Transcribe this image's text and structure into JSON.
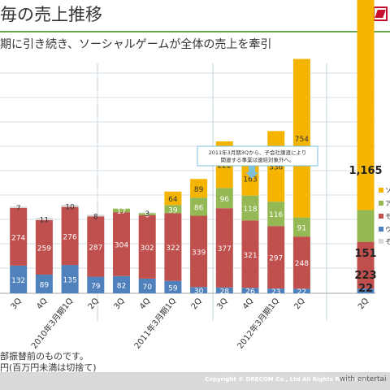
{
  "header": {
    "title": "毎の売上推移",
    "subtitle": "期に引き続き、ソーシャルゲームが全体の売上を牽引"
  },
  "footnotes": [
    "部振替前のものです。",
    "円(百万円未満は切捨て)"
  ],
  "footer": {
    "copyright": "Copyright © DRECOM Co., Ltd All Rights Reserved.",
    "tagline": "with entertai"
  },
  "colors": {
    "social": "#f5b400",
    "ad": "#94b954",
    "media": "#c0504d",
    "web": "#4f81bd",
    "other": "#d9d9d9",
    "grid": "#c5d8e0",
    "axis": "#a6a6a6"
  },
  "chart_data": {
    "type": "bar",
    "stacked": true,
    "x_labels": [
      "2Q",
      "3Q",
      "4Q",
      "2010年3月期1Q",
      "2Q",
      "3Q",
      "4Q",
      "2011年3月期1Q",
      "2Q",
      "3Q",
      "4Q",
      "2012年3月期1Q",
      "2Q"
    ],
    "series": [
      {
        "key": "web",
        "name": "ウ",
        "values": [
          null,
          132,
          89,
          135,
          79,
          82,
          70,
          59,
          30,
          28,
          26,
          23,
          22
        ]
      },
      {
        "key": "media",
        "name": "モ",
        "values": [
          null,
          274,
          259,
          276,
          287,
          304,
          302,
          322,
          339,
          377,
          321,
          297,
          248
        ]
      },
      {
        "key": "ad",
        "name": "ア",
        "values": [
          null,
          null,
          null,
          null,
          null,
          17,
          9,
          39,
          86,
          96,
          118,
          116,
          91
        ]
      },
      {
        "key": "social",
        "name": "ソ",
        "values": [
          null,
          null,
          null,
          null,
          null,
          null,
          null,
          64,
          89,
          222,
          163,
          336,
          754
        ]
      },
      {
        "key": "other",
        "name": "そ",
        "values": [
          null,
          7,
          11,
          10,
          8,
          null,
          3,
          null,
          null,
          null,
          null,
          null,
          null
        ]
      }
    ],
    "next_quarter_labels": [
      {
        "value": "1,165"
      },
      {
        "value": "151"
      },
      {
        "value": "223"
      },
      {
        "value": "22"
      }
    ],
    "callout": "2011年3月期3Qから、子会社譲渡により\n関連する事業は連結対象外へ。",
    "legend_placement": "right",
    "grid": true
  }
}
